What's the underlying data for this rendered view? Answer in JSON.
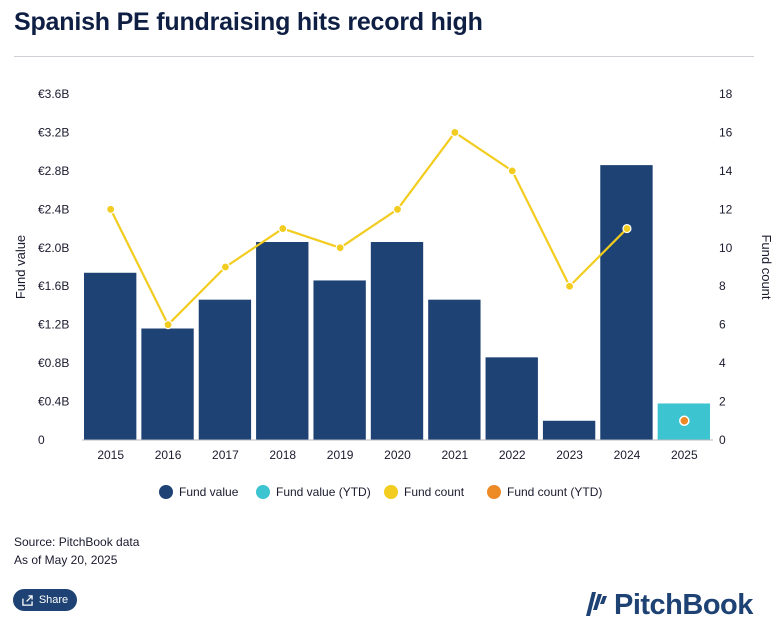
{
  "header": {
    "title": "Spanish PE fundraising hits record high"
  },
  "chart_data": {
    "type": "bar",
    "categories": [
      "2015",
      "2016",
      "2017",
      "2018",
      "2019",
      "2020",
      "2021",
      "2022",
      "2023",
      "2024",
      "2025"
    ],
    "series": [
      {
        "name": "Fund value",
        "kind": "bar",
        "axis": "left",
        "color": "#1d4273",
        "values": [
          1.74,
          1.16,
          1.46,
          2.06,
          1.66,
          2.06,
          1.46,
          0.86,
          0.2,
          2.86,
          null
        ]
      },
      {
        "name": "Fund value (YTD)",
        "kind": "bar",
        "axis": "left",
        "color": "#3cc4d0",
        "values": [
          null,
          null,
          null,
          null,
          null,
          null,
          null,
          null,
          null,
          null,
          0.38
        ]
      },
      {
        "name": "Fund count",
        "kind": "line",
        "axis": "right",
        "color": "#f2cc1f",
        "values": [
          12,
          6,
          9,
          11,
          10,
          12,
          16,
          14,
          8,
          11,
          null
        ]
      },
      {
        "name": "Fund count (YTD)",
        "kind": "point",
        "axis": "right",
        "color": "#ee8a26",
        "values": [
          null,
          null,
          null,
          null,
          null,
          null,
          null,
          null,
          null,
          null,
          1
        ]
      }
    ],
    "ylabel": "Fund value",
    "y2label": "Fund count",
    "ylim": [
      0,
      3.6
    ],
    "y2lim": [
      0,
      18
    ],
    "yticks": [
      "0",
      "€0.4B",
      "€0.8B",
      "€1.2B",
      "€1.6B",
      "€2.0B",
      "€2.4B",
      "€2.8B",
      "€3.2B",
      "€3.6B"
    ],
    "y2ticks": [
      "0",
      "2",
      "4",
      "6",
      "8",
      "10",
      "12",
      "14",
      "16",
      "18"
    ],
    "grid": false,
    "legend_position": "bottom"
  },
  "footer": {
    "source": "Source: PitchBook data",
    "as_of": "As of May 20, 2025",
    "share_label": "Share",
    "logo_text": "PitchBook",
    "share_icon": "share-icon",
    "logo_icon": "pitchbook-logo-icon"
  }
}
